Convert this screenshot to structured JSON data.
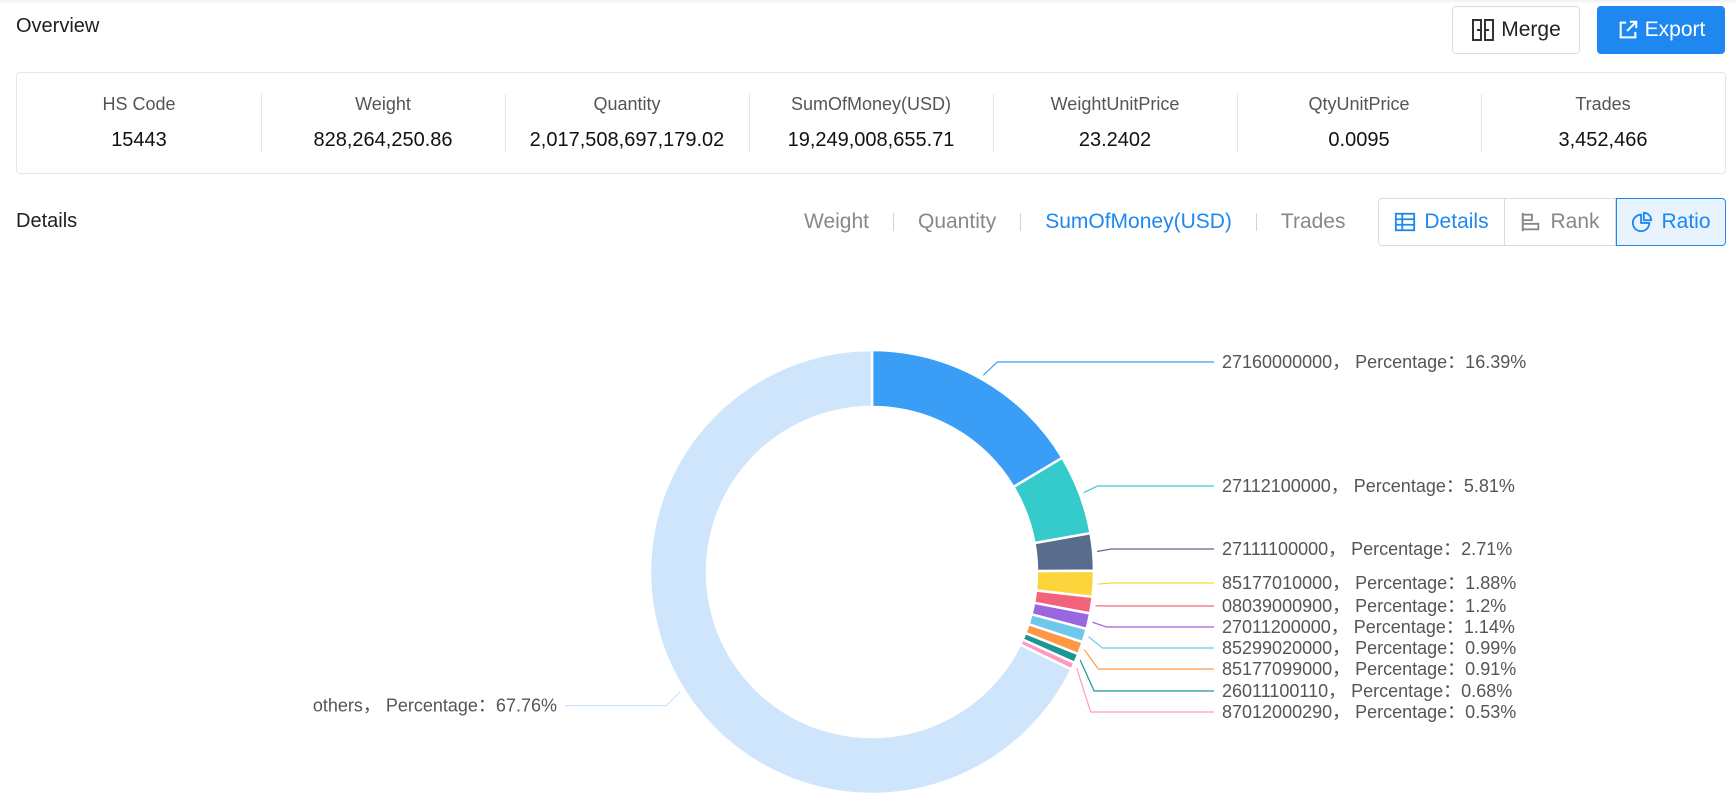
{
  "overview": {
    "title": "Overview",
    "merge_label": "Merge",
    "export_label": "Export"
  },
  "stats": [
    {
      "label": "HS Code",
      "value": "15443"
    },
    {
      "label": "Weight",
      "value": "828,264,250.86"
    },
    {
      "label": "Quantity",
      "value": "2,017,508,697,179.02"
    },
    {
      "label": "SumOfMoney(USD)",
      "value": "19,249,008,655.71"
    },
    {
      "label": "WeightUnitPrice",
      "value": "23.2402"
    },
    {
      "label": "QtyUnitPrice",
      "value": "0.0095"
    },
    {
      "label": "Trades",
      "value": "3,452,466"
    }
  ],
  "details": {
    "title": "Details",
    "metric_tabs": [
      "Weight",
      "Quantity",
      "SumOfMoney(USD)",
      "Trades"
    ],
    "active_metric": "SumOfMoney(USD)",
    "view_buttons": [
      "Details",
      "Rank",
      "Ratio"
    ],
    "active_view": "Ratio"
  },
  "colors": {
    "accent": "#1e87f0",
    "others": "#cfe5fc"
  },
  "chart_data": {
    "type": "pie",
    "variant": "donut",
    "label_suffix": "， Percentage：",
    "slices": [
      {
        "name": "27160000000",
        "value": 16.39,
        "label": "16.39%",
        "color": "#3a9ef7"
      },
      {
        "name": "27112100000",
        "value": 5.81,
        "label": "5.81%",
        "color": "#36cbcb"
      },
      {
        "name": "27111100000",
        "value": 2.71,
        "label": "2.71%",
        "color": "#5a6c8d"
      },
      {
        "name": "85177010000",
        "value": 1.88,
        "label": "1.88%",
        "color": "#fcd53d"
      },
      {
        "name": "08039000900",
        "value": 1.2,
        "label": "1.2%",
        "color": "#f2637b"
      },
      {
        "name": "27011200000",
        "value": 1.14,
        "label": "1.14%",
        "color": "#9966e0"
      },
      {
        "name": "85299020000",
        "value": 0.99,
        "label": "0.99%",
        "color": "#6dc8ec"
      },
      {
        "name": "85177099000",
        "value": 0.91,
        "label": "0.91%",
        "color": "#ff9845"
      },
      {
        "name": "26011100110",
        "value": 0.68,
        "label": "0.68%",
        "color": "#1e9493"
      },
      {
        "name": "87012000290",
        "value": 0.53,
        "label": "0.53%",
        "color": "#ff99c3"
      },
      {
        "name": "others",
        "value": 67.76,
        "label": "67.76%",
        "color": "#cfe5fc"
      }
    ]
  }
}
